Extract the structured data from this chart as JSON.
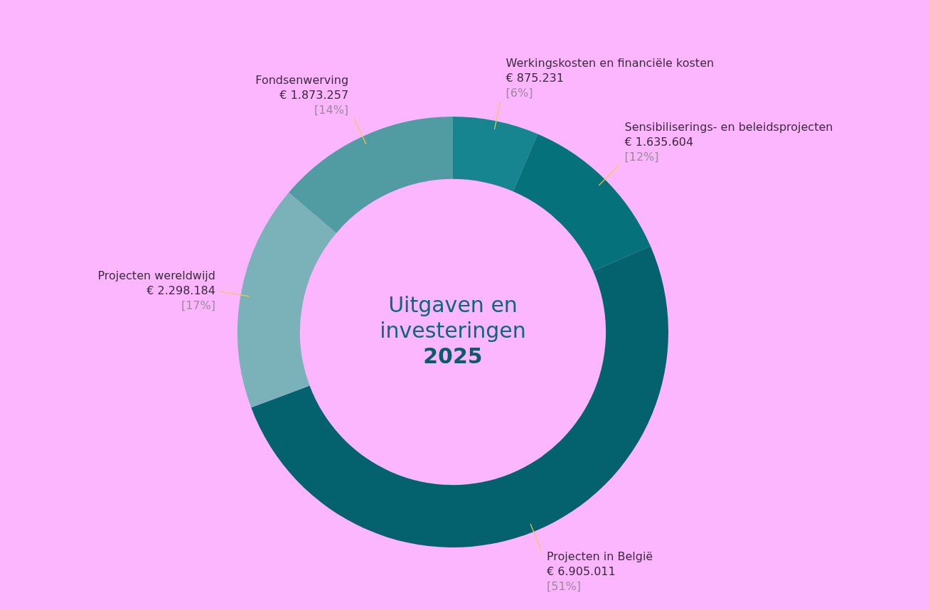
{
  "chart_data": {
    "type": "donut",
    "title": "Uitgaven en investeringen",
    "subtitle": "2025",
    "categories": [
      "Werkingskosten en financiële kosten",
      "Sensibiliserings- en beleidsprojecten",
      "Projecten in België",
      "Projecten wereldwijd",
      "Fondsenwerving"
    ],
    "values": [
      875231,
      1635604,
      6905011,
      2298184,
      1873257
    ],
    "colors": [
      "#17858f",
      "#05717b",
      "#03626d",
      "#7bb2b9",
      "#519ba3"
    ],
    "value_labels": [
      "€ 875.231\n[6%]",
      "€ 1.635.604\n[12%]",
      "€ 6.905.011\n[51%]",
      "€ 2.298.184\n[17%]",
      "€ 1.873.257\n[14%]"
    ],
    "legend": false
  }
}
